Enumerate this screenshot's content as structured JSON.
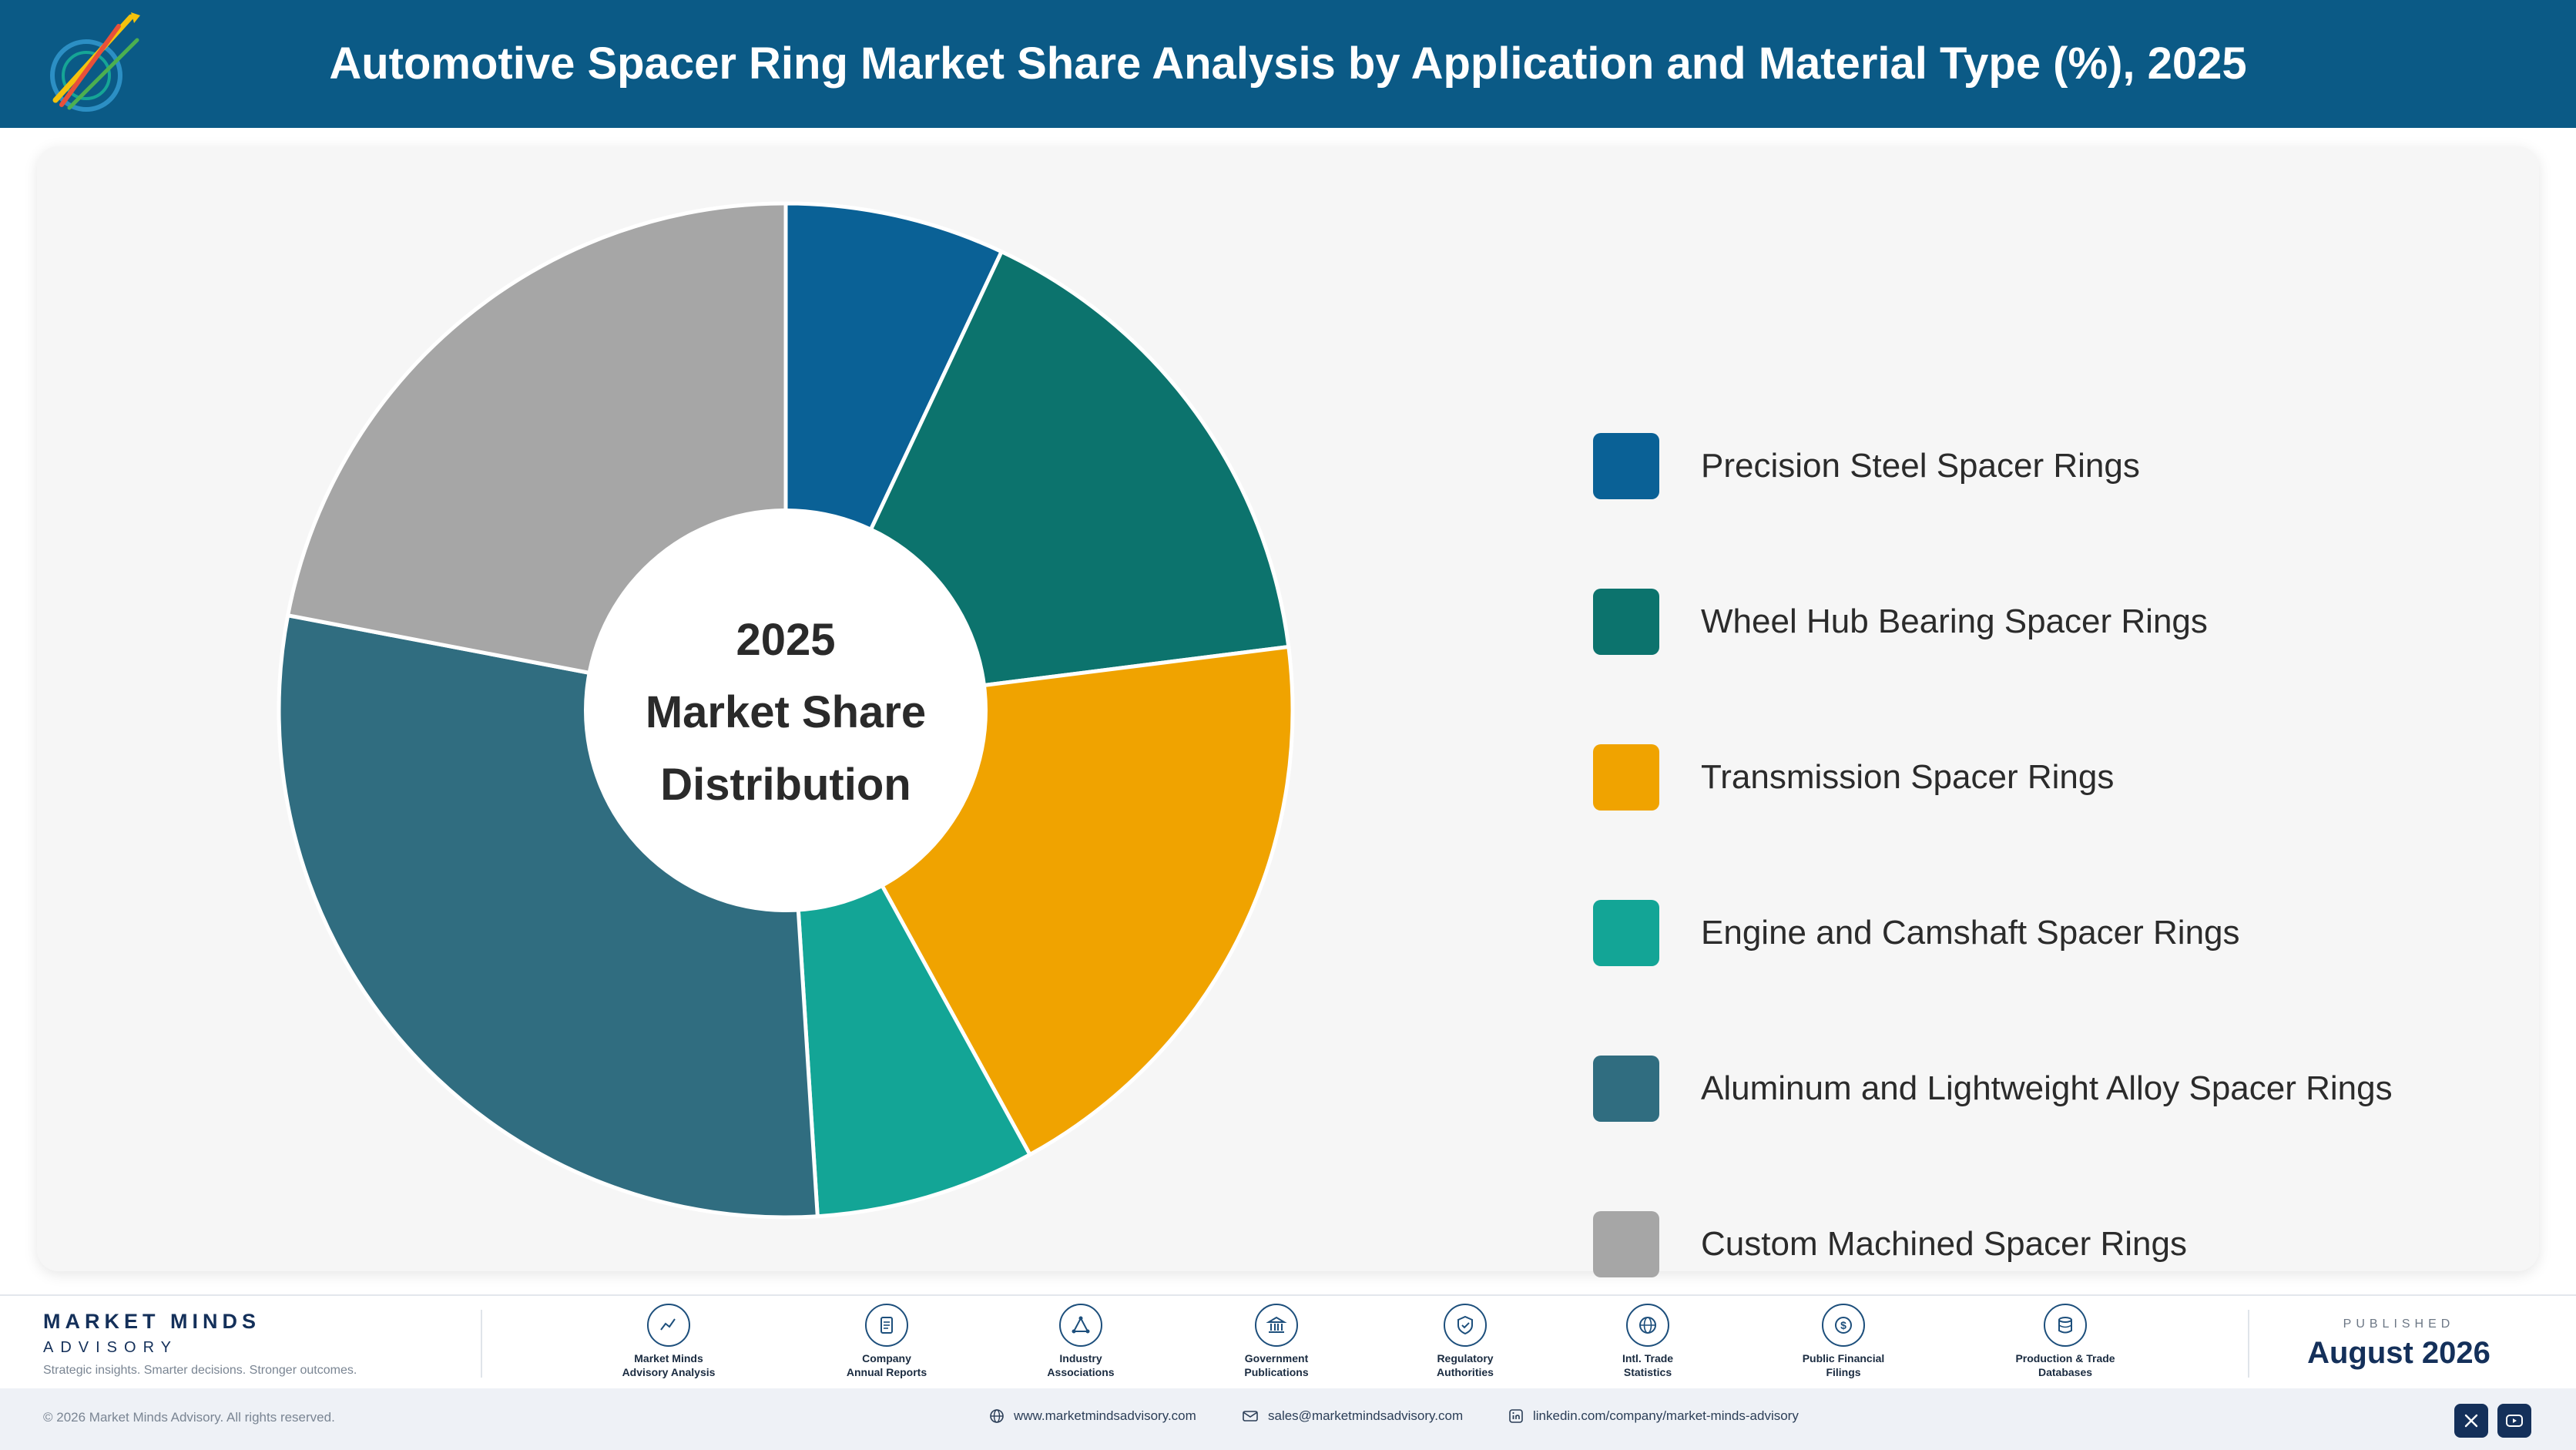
{
  "header": {
    "title": "Automotive Spacer Ring Market Share Analysis by Application and Material Type (%), 2025"
  },
  "chart_data": {
    "type": "pie",
    "title": "Automotive Spacer Ring Market Share Analysis by Application and Material Type (%), 2025",
    "center_label": [
      "2025",
      "Market Share",
      "Distribution"
    ],
    "categories": [
      "Precision Steel Spacer Rings",
      "Wheel Hub Bearing Spacer Rings",
      "Transmission Spacer Rings",
      "Engine and Camshaft Spacer Rings",
      "Aluminum and Lightweight Alloy Spacer Rings",
      "Custom Machined Spacer Rings"
    ],
    "values": [
      7,
      16,
      19,
      7,
      29,
      22
    ],
    "colors": [
      "#0a6196",
      "#0c736d",
      "#f0a300",
      "#13a596",
      "#306d80",
      "#a6a6a6"
    ],
    "legend_position": "right",
    "style": "donut"
  },
  "footer": {
    "brand_name": "MARKET MINDS",
    "brand_sub": "ADVISORY",
    "brand_tagline": "Strategic insights. Smarter decisions. Stronger outcomes.",
    "sources": [
      {
        "label": "Market Minds\nAdvisory Analysis",
        "icon": "trend-line-icon"
      },
      {
        "label": "Company\nAnnual Reports",
        "icon": "document-icon"
      },
      {
        "label": "Industry\nAssociations",
        "icon": "network-icon"
      },
      {
        "label": "Government\nPublications",
        "icon": "government-building-icon"
      },
      {
        "label": "Regulatory\nAuthorities",
        "icon": "shield-check-icon"
      },
      {
        "label": "Intl. Trade\nStatistics",
        "icon": "globe-icon"
      },
      {
        "label": "Public Financial\nFilings",
        "icon": "dollar-coin-icon"
      },
      {
        "label": "Production & Trade\nDatabases",
        "icon": "database-icon"
      }
    ],
    "published_label": "PUBLISHED",
    "published_date": "August 2026"
  },
  "bottombar": {
    "copyright": "© 2026 Market Minds Advisory. All rights reserved.",
    "website": "www.marketmindsadvisory.com",
    "email": "sales@marketmindsadvisory.com",
    "linkedin": "linkedin.com/company/market-minds-advisory"
  }
}
